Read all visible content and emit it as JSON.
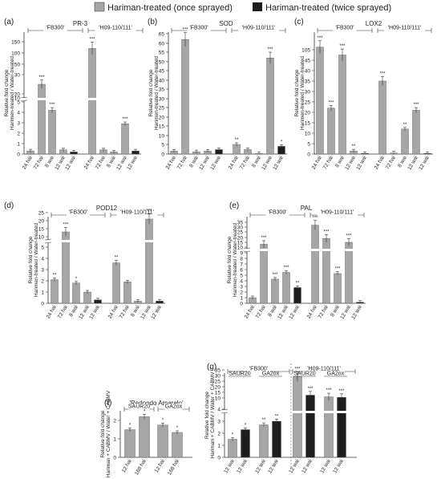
{
  "legend": {
    "items": [
      {
        "label": "Hariman-treated (once sprayed)",
        "color": "#a6a6a6"
      },
      {
        "label": "Hariman-treated (twice sprayed)",
        "color": "#1e1e1e"
      }
    ],
    "placement": "top"
  },
  "chart_data": [
    {
      "panel": "(a)",
      "type": "bar",
      "title": "PR-3",
      "ylabel": [
        "Relative fold change",
        "Harimen-treated / Water-treated"
      ],
      "axis_break": true,
      "groups": [
        {
          "label": "'FB300'"
        },
        {
          "label": "'H09-110/111'"
        }
      ],
      "ytick_labels": [
        "0",
        "1",
        "2",
        "3",
        "4",
        "5",
        "10",
        "20",
        "30",
        "50",
        "100",
        "150"
      ],
      "bars": [
        {
          "x": "24 hai",
          "value": 0.3,
          "series": "once",
          "sig": ""
        },
        {
          "x": "72 hai",
          "value": 25,
          "series": "once",
          "sig": "***"
        },
        {
          "x": "8 wai",
          "value": 4.2,
          "series": "once",
          "sig": "***"
        },
        {
          "x": "12 wai",
          "value": 0.4,
          "series": "once",
          "sig": ""
        },
        {
          "x": "12 wai",
          "value": 0.2,
          "series": "twice",
          "sig": ""
        },
        {
          "x": "24 hai",
          "value": 120,
          "series": "once",
          "sig": "***"
        },
        {
          "x": "72 hai",
          "value": 0.4,
          "series": "once",
          "sig": ""
        },
        {
          "x": "8 wai",
          "value": 0.2,
          "series": "once",
          "sig": ""
        },
        {
          "x": "12 wai",
          "value": 2.9,
          "series": "once",
          "sig": "***"
        },
        {
          "x": "12 wai",
          "value": 0.3,
          "series": "twice",
          "sig": ""
        }
      ]
    },
    {
      "panel": "(b)",
      "type": "bar",
      "title": "SOD",
      "ylabel": [
        "Relative fold change",
        "Harimen-treated / Water-treated"
      ],
      "axis_break": false,
      "groups": [
        {
          "label": "'FB300'"
        },
        {
          "label": "'H09-110/111'"
        }
      ],
      "ytick_labels": [
        "0",
        "5",
        "10",
        "15",
        "20",
        "25",
        "30",
        "35",
        "40",
        "45",
        "50",
        "55",
        "60",
        "65"
      ],
      "bars": [
        {
          "x": "24 hai",
          "value": 1.5,
          "series": "once",
          "sig": ""
        },
        {
          "x": "72 hai",
          "value": 62,
          "series": "once",
          "sig": "***"
        },
        {
          "x": "8 wai",
          "value": 1.2,
          "series": "once",
          "sig": ""
        },
        {
          "x": "12 wai",
          "value": 1.5,
          "series": "once",
          "sig": ""
        },
        {
          "x": "12 wai",
          "value": 2.3,
          "series": "twice",
          "sig": ""
        },
        {
          "x": "24 hai",
          "value": 5,
          "series": "once",
          "sig": "**"
        },
        {
          "x": "72 hai",
          "value": 2.3,
          "series": "once",
          "sig": ""
        },
        {
          "x": "8 wai",
          "value": 0.3,
          "series": "once",
          "sig": ""
        },
        {
          "x": "12 wai",
          "value": 52,
          "series": "once",
          "sig": "***"
        },
        {
          "x": "12 wai",
          "value": 4,
          "series": "twice",
          "sig": "*"
        }
      ]
    },
    {
      "panel": "(c)",
      "type": "bar",
      "title": "LOX2",
      "ylabel": [
        "Relative fold change",
        "Harimen-treated / Water-treated"
      ],
      "axis_break": false,
      "groups": [
        {
          "label": "'FB300'"
        },
        {
          "label": "'H09-110/111'"
        }
      ],
      "ytick_labels": [
        "0",
        "5",
        "10",
        "15",
        "20",
        "25",
        "30",
        "35",
        "40",
        "45",
        "105"
      ],
      "bars": [
        {
          "x": "24 hai",
          "value": 120,
          "series": "once",
          "sig": "***"
        },
        {
          "x": "72 hai",
          "value": 22,
          "series": "once",
          "sig": "***"
        },
        {
          "x": "8 wai",
          "value": 75,
          "series": "once",
          "sig": "***"
        },
        {
          "x": "12 wai",
          "value": 1.5,
          "series": "once",
          "sig": "**"
        },
        {
          "x": "12 wai",
          "value": 0,
          "series": "twice",
          "sig": ""
        },
        {
          "x": "24 hai",
          "value": 35,
          "series": "once",
          "sig": "***"
        },
        {
          "x": "72 hai",
          "value": 0.5,
          "series": "once",
          "sig": ""
        },
        {
          "x": "8 wai",
          "value": 12,
          "series": "once",
          "sig": "**"
        },
        {
          "x": "12 wai",
          "value": 21,
          "series": "once",
          "sig": "***"
        },
        {
          "x": "12 wai",
          "value": 0,
          "series": "twice",
          "sig": ""
        }
      ]
    },
    {
      "panel": "(d)",
      "type": "bar",
      "title": "POD12",
      "ylabel": [
        "Relative fold change",
        "Harimen-treated / Water-treated"
      ],
      "axis_break": true,
      "groups": [
        {
          "label": "'FB300'"
        },
        {
          "label": "'H09-110/111'"
        }
      ],
      "ytick_labels": [
        "0",
        "1",
        "2",
        "3",
        "4",
        "5",
        "10",
        "15",
        "20",
        "25"
      ],
      "bars": [
        {
          "x": "24 hai",
          "value": 2.1,
          "series": "once",
          "sig": "**"
        },
        {
          "x": "72 hai",
          "value": 13,
          "series": "once",
          "sig": "***"
        },
        {
          "x": "8 wai",
          "value": 1.8,
          "series": "once",
          "sig": "*"
        },
        {
          "x": "12 wai",
          "value": 1.0,
          "series": "once",
          "sig": ""
        },
        {
          "x": "12 wai",
          "value": 0.3,
          "series": "twice",
          "sig": ""
        },
        {
          "x": "24 hai",
          "value": 3.6,
          "series": "once",
          "sig": "**"
        },
        {
          "x": "72 hai",
          "value": 1.9,
          "series": "once",
          "sig": ""
        },
        {
          "x": "8 wai",
          "value": 0.2,
          "series": "once",
          "sig": ""
        },
        {
          "x": "12 wai",
          "value": 21,
          "series": "once",
          "sig": "***"
        },
        {
          "x": "12 wai",
          "value": 0.2,
          "series": "twice",
          "sig": ""
        }
      ]
    },
    {
      "panel": "(e)",
      "type": "bar",
      "title": "PAL",
      "ylabel": [
        "Relative fold change",
        "Harimen-treated / Water-treated"
      ],
      "axis_break": true,
      "groups": [
        {
          "label": "'FB300'"
        },
        {
          "label": "'H09-110/111'"
        }
      ],
      "ytick_labels": [
        "0",
        "1",
        "2",
        "3",
        "4",
        "5",
        "6",
        "7",
        "8",
        "9",
        "10",
        "15",
        "20",
        "25",
        "30",
        "35"
      ],
      "bars": [
        {
          "x": "24 hai",
          "value": 1,
          "series": "once",
          "sig": ""
        },
        {
          "x": "72 hai",
          "value": 13,
          "series": "once",
          "sig": "***"
        },
        {
          "x": "8 wai",
          "value": 4.3,
          "series": "once",
          "sig": "***"
        },
        {
          "x": "12 wai",
          "value": 5.5,
          "series": "once",
          "sig": "***"
        },
        {
          "x": "12 wai",
          "value": 2.8,
          "series": "twice",
          "sig": "**"
        },
        {
          "x": "24 hai",
          "value": 32,
          "series": "once",
          "sig": "***"
        },
        {
          "x": "72 hai",
          "value": 19,
          "series": "once",
          "sig": "***"
        },
        {
          "x": "8 wai",
          "value": 5.3,
          "series": "once",
          "sig": "***"
        },
        {
          "x": "12 wai",
          "value": 15,
          "series": "once",
          "sig": "***"
        },
        {
          "x": "12 wai",
          "value": 0.2,
          "series": "twice",
          "sig": ""
        }
      ]
    },
    {
      "panel": "(f)",
      "type": "bar",
      "title": "'Redondo Amarelo'",
      "ylabel": [
        "Relative fold change",
        "Hariman + CABMV / Water + CABMV"
      ],
      "axis_break": false,
      "groups": [
        {
          "label": "SAUR20"
        },
        {
          "label": "GA2ox"
        }
      ],
      "ytick_labels": [
        "0",
        "1",
        "2"
      ],
      "bars": [
        {
          "x": "12 hai",
          "value": 1.5,
          "series": "once",
          "sig": "*"
        },
        {
          "x": "168 hai",
          "value": 2.2,
          "series": "once",
          "sig": "*"
        },
        {
          "x": "12 hai",
          "value": 1.75,
          "series": "once",
          "sig": "*"
        },
        {
          "x": "168 hai",
          "value": 1.35,
          "series": "once",
          "sig": "*"
        }
      ]
    },
    {
      "panel": "(g)",
      "type": "bar",
      "title": "",
      "ylabel": [
        "Relative fold change",
        "Hariman + CABMV / Water + CABMV"
      ],
      "axis_break": true,
      "groups": [
        {
          "label": "'FB300'"
        },
        {
          "label": "'H09-110/111'"
        }
      ],
      "subgroups": [
        "SAUR20",
        "GA2ox",
        "SAUR20",
        "GA2ox"
      ],
      "ytick_labels": [
        "0",
        "1",
        "2",
        "3",
        "4",
        "10",
        "15",
        "20",
        "25",
        "30",
        "35"
      ],
      "bars": [
        {
          "x": "12 wai",
          "value": 1.5,
          "series": "once",
          "sig": "*"
        },
        {
          "x": "12 wai",
          "value": 2.3,
          "series": "twice",
          "sig": "*"
        },
        {
          "x": "12 wai",
          "value": 2.7,
          "series": "once",
          "sig": "**"
        },
        {
          "x": "12 wai",
          "value": 3.0,
          "series": "twice",
          "sig": "**"
        },
        {
          "x": "12 wai",
          "value": 29,
          "series": "once",
          "sig": "***"
        },
        {
          "x": "12 wai",
          "value": 12.5,
          "series": "twice",
          "sig": "***"
        },
        {
          "x": "12 wai",
          "value": 11,
          "series": "once",
          "sig": "***"
        },
        {
          "x": "12 wai",
          "value": 10.5,
          "series": "twice",
          "sig": "***"
        }
      ]
    }
  ]
}
